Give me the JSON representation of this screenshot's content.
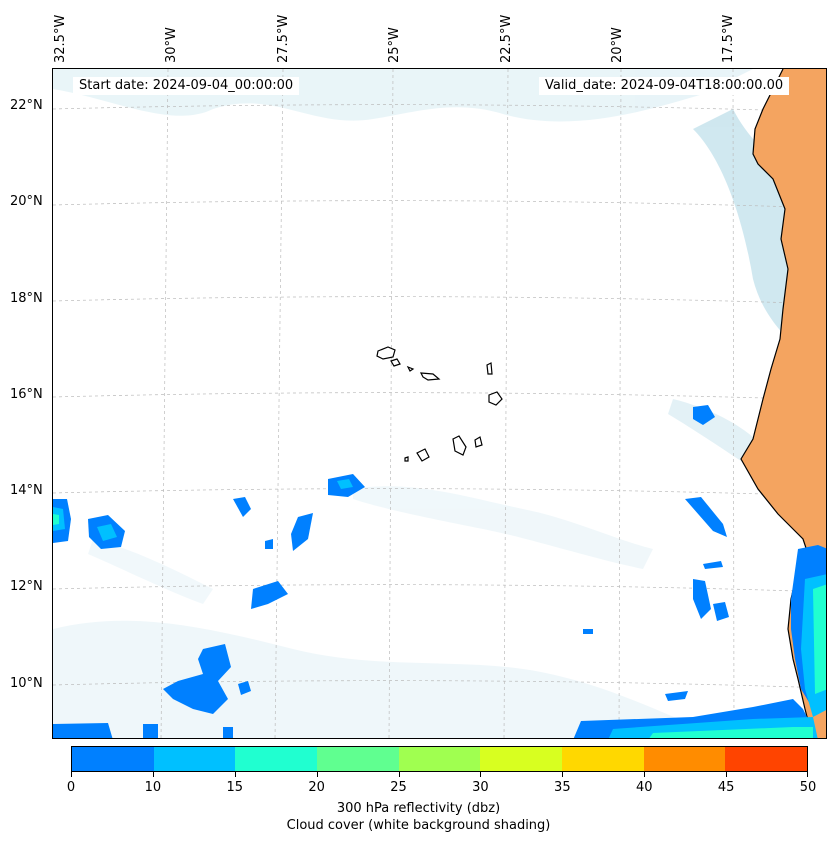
{
  "map": {
    "start_date": "Start date: 2024-09-04_00:00:00",
    "valid_date": "Valid_date: 2024-09-04T18:00:00.00",
    "longitude_labels": [
      "32.5°W",
      "30°W",
      "27.5°W",
      "25°W",
      "22.5°W",
      "20°W",
      "17.5°W"
    ],
    "latitude_labels": [
      "22°N",
      "20°N",
      "18°N",
      "16°N",
      "14°N",
      "12°N",
      "10°N"
    ],
    "gridlines": true,
    "land_color": "#f4a460",
    "cloud_color": "#a8d8e8"
  },
  "colorbar": {
    "ticks": [
      "0",
      "10",
      "15",
      "20",
      "25",
      "30",
      "35",
      "40",
      "45",
      "50"
    ],
    "colors": [
      "#0080ff",
      "#00c0ff",
      "#20ffd0",
      "#60ff90",
      "#a0ff50",
      "#d8ff20",
      "#ffd800",
      "#ff8c00",
      "#ff4400"
    ],
    "label": "300 hPa reflectivity (dbz)",
    "sublabel": "Cloud cover (white background shading)"
  }
}
